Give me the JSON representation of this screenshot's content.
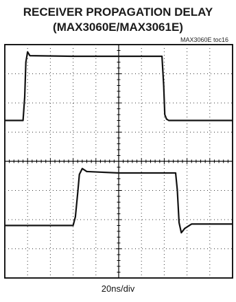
{
  "chart_data": {
    "type": "line",
    "title": "RECEIVER PROPAGATION DELAY",
    "subtitle": "(MAX3060E/MAX3061E)",
    "chart_id": "MAX3060E toc16",
    "xlabel": "20ns/div",
    "grid": true,
    "divisions": {
      "x": 10,
      "y": 8
    },
    "x_unit": "ns",
    "xlim": [
      0,
      200
    ],
    "ylim": [
      -4,
      4
    ],
    "series": [
      {
        "x": [
          0,
          16,
          17.5,
          18.5,
          20,
          22,
          60,
          100,
          132,
          138,
          139.5,
          140.5,
          142,
          144,
          200
        ],
        "y": [
          1.4,
          1.4,
          2.2,
          3.4,
          3.75,
          3.62,
          3.6,
          3.6,
          3.6,
          3.6,
          2.6,
          1.6,
          1.45,
          1.4,
          1.4
        ]
      },
      {
        "x": [
          0,
          60,
          62,
          64,
          65.5,
          68,
          72,
          100,
          140,
          150,
          151.5,
          153,
          155,
          158,
          164,
          200
        ],
        "y": [
          -2.2,
          -2.2,
          -1.9,
          -1.1,
          -0.45,
          -0.25,
          -0.35,
          -0.4,
          -0.4,
          -0.4,
          -1.0,
          -2.1,
          -2.45,
          -2.3,
          -2.15,
          -2.15
        ]
      }
    ]
  }
}
